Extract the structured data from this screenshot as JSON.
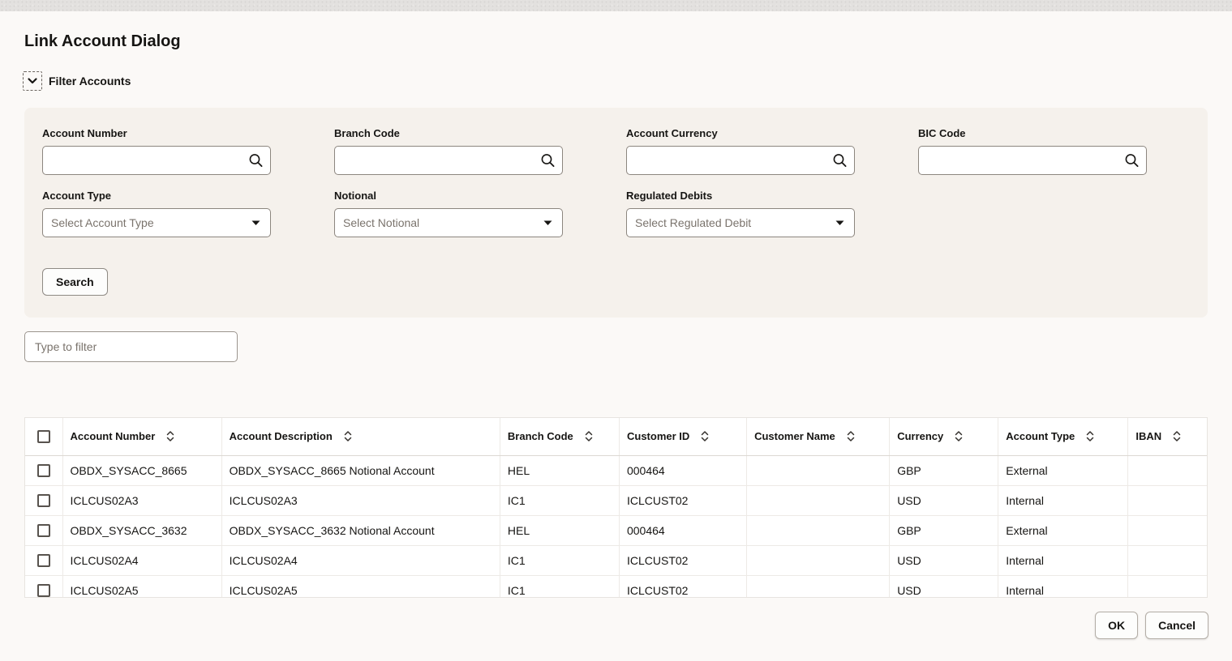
{
  "window": {
    "title": "Link Account Dialog"
  },
  "filter": {
    "section_label": "Filter Accounts",
    "account_number_label": "Account Number",
    "branch_code_label": "Branch Code",
    "account_currency_label": "Account Currency",
    "bic_code_label": "BIC Code",
    "account_type_label": "Account Type",
    "account_type_placeholder": "Select Account Type",
    "notional_label": "Notional",
    "notional_placeholder": "Select Notional",
    "regulated_debits_label": "Regulated Debits",
    "regulated_debits_placeholder": "Select Regulated Debit",
    "search_button_label": "Search"
  },
  "quick_filter": {
    "placeholder": "Type to filter"
  },
  "table": {
    "columns": [
      "Account Number",
      "Account Description",
      "Branch Code",
      "Customer ID",
      "Customer Name",
      "Currency",
      "Account Type",
      "IBAN"
    ],
    "rows": [
      [
        "OBDX_SYSACC_8665",
        "OBDX_SYSACC_8665 Notional Account",
        "HEL",
        "000464",
        "",
        "GBP",
        "External",
        ""
      ],
      [
        "ICLCUS02A3",
        "ICLCUS02A3",
        "IC1",
        "ICLCUST02",
        "",
        "USD",
        "Internal",
        ""
      ],
      [
        "OBDX_SYSACC_3632",
        "OBDX_SYSACC_3632 Notional Account",
        "HEL",
        "000464",
        "",
        "GBP",
        "External",
        ""
      ],
      [
        "ICLCUS02A4",
        "ICLCUS02A4",
        "IC1",
        "ICLCUST02",
        "",
        "USD",
        "Internal",
        ""
      ],
      [
        "ICLCUS02A5",
        "ICLCUS02A5",
        "IC1",
        "ICLCUST02",
        "",
        "USD",
        "Internal",
        ""
      ]
    ]
  },
  "footer": {
    "ok_label": "OK",
    "cancel_label": "Cancel"
  },
  "colors": {
    "dialog_bg": "#fbf9f7",
    "panel_bg": "#f5f1ec",
    "text": "#161513",
    "input_border": "#8c867f",
    "table_line": "#edeae6"
  }
}
